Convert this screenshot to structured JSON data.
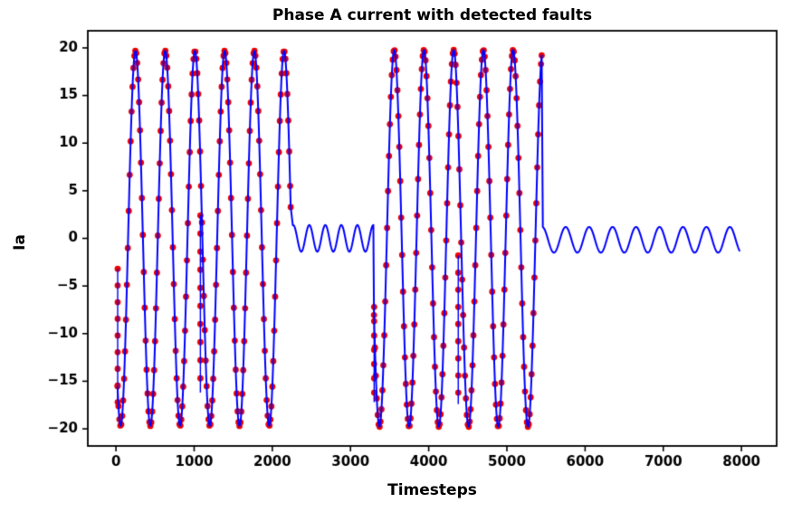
{
  "chart_data": {
    "type": "line",
    "title": "Phase A current with detected faults",
    "xlabel": "Timesteps",
    "ylabel": "Ia",
    "xlim": [
      -360,
      8450
    ],
    "ylim": [
      -21.8,
      21.8
    ],
    "xticks": [
      0,
      1000,
      2000,
      3000,
      4000,
      5000,
      6000,
      7000,
      8000
    ],
    "yticks": [
      -20,
      -15,
      -10,
      -5,
      0,
      5,
      10,
      15,
      20
    ],
    "grid": false,
    "legend": null,
    "colors": {
      "line": "#0000ff",
      "fault": "#ee0000",
      "axis": "#000000",
      "background": "#ffffff"
    },
    "series_notes": [
      {
        "name": "Phase A current",
        "style": "line",
        "color": "#0000ff"
      },
      {
        "name": "detected faults",
        "style": "scatter",
        "color": "#ee0000"
      }
    ],
    "segments": [
      {
        "x0": 20,
        "x1": 2235,
        "amp": 19.7,
        "period": 380,
        "phase_deg": 232,
        "mean": 0,
        "fault": true
      },
      {
        "x0": 2262,
        "x1": 3292,
        "amp": 1.4,
        "period": 205,
        "phase_deg": 80,
        "mean": 0,
        "fault": false
      },
      {
        "x0": 3300,
        "x1": 5445,
        "amp": 19.8,
        "period": 380,
        "phase_deg": 204,
        "mean": 0,
        "fault": true
      },
      {
        "x0": 5460,
        "x1": 7980,
        "amp": 1.35,
        "period": 300,
        "phase_deg": 100,
        "mean": -0.15,
        "fault": false
      }
    ],
    "fault_columns": [
      {
        "x": 22,
        "y_top": -3.2,
        "y_bottom": -17.2,
        "dot_step": 1.75
      },
      {
        "x": 1080,
        "y_top": 2.4,
        "y_bottom": -16.2,
        "dot_step": 1.9
      },
      {
        "x": 3302,
        "y_top": -7.2,
        "y_bottom": -17.2,
        "dot_step": 1.5
      },
      {
        "x": 4378,
        "y_top": -1.8,
        "y_bottom": -17.4,
        "dot_step": 1.8
      }
    ],
    "sampling": {
      "line_step": 6,
      "marker_step": 12
    },
    "marker_radius": 3.4,
    "line_width": 2
  }
}
